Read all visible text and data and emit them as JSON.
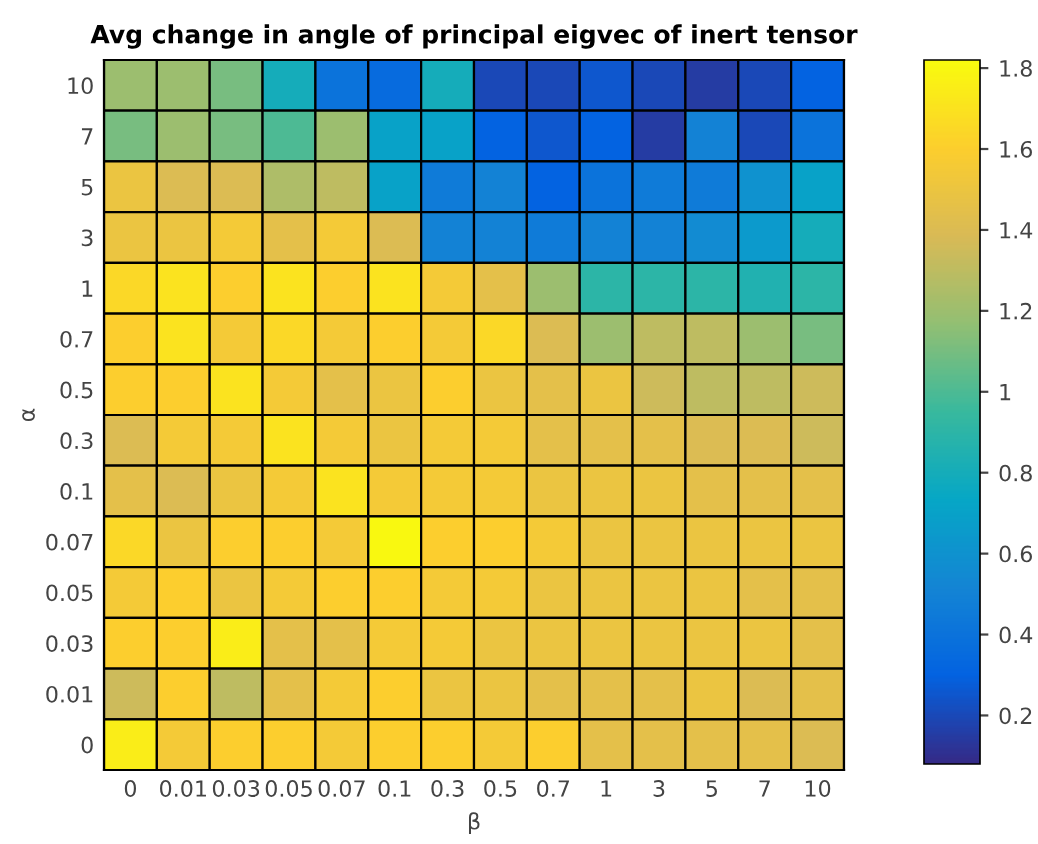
{
  "chart_data": {
    "type": "heatmap",
    "title": "Avg change in angle of principal eigvec of inert tensor",
    "xlabel": "β",
    "ylabel": "α",
    "categories": [
      "0",
      "0.01",
      "0.03",
      "0.05",
      "0.07",
      "0.1",
      "0.3",
      "0.5",
      "0.7",
      "1",
      "3",
      "5",
      "7",
      "10"
    ],
    "y_categories": [
      "10",
      "7",
      "5",
      "3",
      "1",
      "0.7",
      "0.5",
      "0.3",
      "0.1",
      "0.07",
      "0.05",
      "0.03",
      "0.01",
      "0"
    ],
    "cells": [
      [
        1.2,
        1.2,
        1.1,
        0.8,
        0.4,
        0.35,
        0.8,
        0.2,
        0.2,
        0.25,
        0.2,
        0.15,
        0.2,
        0.3
      ],
      [
        1.1,
        1.2,
        1.1,
        1.0,
        1.2,
        0.7,
        0.7,
        0.3,
        0.25,
        0.3,
        0.15,
        0.5,
        0.2,
        0.4
      ],
      [
        1.5,
        1.4,
        1.4,
        1.25,
        1.3,
        0.7,
        0.45,
        0.5,
        0.3,
        0.4,
        0.45,
        0.45,
        0.6,
        0.7
      ],
      [
        1.5,
        1.5,
        1.55,
        1.45,
        1.55,
        1.4,
        0.5,
        0.5,
        0.45,
        0.5,
        0.5,
        0.55,
        0.65,
        0.8
      ],
      [
        1.65,
        1.7,
        1.6,
        1.7,
        1.6,
        1.7,
        1.55,
        1.45,
        1.2,
        0.9,
        0.9,
        0.9,
        0.85,
        0.9
      ],
      [
        1.6,
        1.7,
        1.55,
        1.65,
        1.55,
        1.6,
        1.55,
        1.65,
        1.4,
        1.2,
        1.3,
        1.3,
        1.2,
        1.1
      ],
      [
        1.6,
        1.6,
        1.7,
        1.55,
        1.45,
        1.5,
        1.6,
        1.5,
        1.45,
        1.5,
        1.35,
        1.3,
        1.3,
        1.35
      ],
      [
        1.4,
        1.55,
        1.55,
        1.7,
        1.55,
        1.5,
        1.55,
        1.55,
        1.45,
        1.45,
        1.45,
        1.4,
        1.4,
        1.35
      ],
      [
        1.45,
        1.4,
        1.5,
        1.55,
        1.7,
        1.55,
        1.55,
        1.55,
        1.5,
        1.5,
        1.5,
        1.45,
        1.45,
        1.45
      ],
      [
        1.65,
        1.5,
        1.6,
        1.6,
        1.55,
        1.8,
        1.6,
        1.6,
        1.55,
        1.5,
        1.5,
        1.5,
        1.5,
        1.5
      ],
      [
        1.55,
        1.6,
        1.5,
        1.55,
        1.6,
        1.6,
        1.55,
        1.55,
        1.5,
        1.5,
        1.5,
        1.5,
        1.45,
        1.45
      ],
      [
        1.6,
        1.6,
        1.75,
        1.45,
        1.45,
        1.55,
        1.55,
        1.5,
        1.5,
        1.5,
        1.5,
        1.5,
        1.5,
        1.45
      ],
      [
        1.35,
        1.6,
        1.3,
        1.45,
        1.55,
        1.6,
        1.5,
        1.5,
        1.45,
        1.45,
        1.45,
        1.5,
        1.4,
        1.45
      ],
      [
        1.75,
        1.55,
        1.6,
        1.6,
        1.55,
        1.6,
        1.6,
        1.55,
        1.6,
        1.45,
        1.45,
        1.45,
        1.45,
        1.4
      ]
    ],
    "clim": [
      0.08,
      1.82
    ],
    "cticks": [
      0.2,
      0.4,
      0.6,
      0.8,
      1,
      1.2,
      1.4,
      1.6,
      1.8
    ]
  }
}
